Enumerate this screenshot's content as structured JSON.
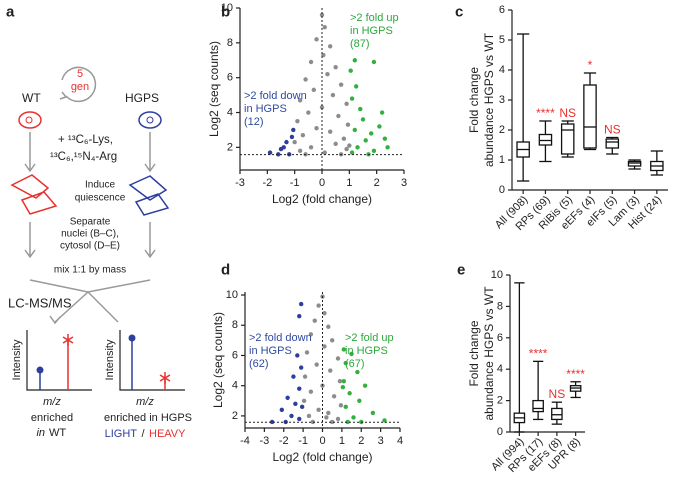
{
  "panel_labels": [
    "a",
    "b",
    "c",
    "d",
    "e"
  ],
  "diagram": {
    "wt": "WT",
    "hgps": "HGPS",
    "generations": [
      "5",
      "gen"
    ],
    "label_lys": "+ ¹³C₆-Lys,",
    "label_arg": "¹³C₆,¹⁵N₄-Arg",
    "quiescence": [
      "Induce",
      "quiescence"
    ],
    "separate": [
      "Separate",
      "nuclei (B–C),",
      "cytosol (D–E)"
    ],
    "mix": "mix 1:1 by mass",
    "lcms": "LC-MS/MS",
    "spectra": [
      {
        "ylabel": "Intensity",
        "xlabel": "m/z",
        "caption": [
          "enriched",
          "in",
          "WT"
        ]
      },
      {
        "ylabel": "Intensity",
        "xlabel": "m/z",
        "caption": [
          "enriched in HGPS"
        ],
        "light": "LIGHT",
        "slash": "/",
        "heavy": "HEAVY"
      }
    ]
  },
  "chart_data": [
    {
      "type": "scatter",
      "xlabel": "Log2 (fold change)",
      "ylabel": [
        "Log2 (seq counts)"
      ],
      "xlim": [
        -3,
        3
      ],
      "xticks": [
        -3,
        -2,
        -1,
        0,
        1,
        2,
        3
      ],
      "ylim": [
        0.7,
        10
      ],
      "yticks": [
        2,
        4,
        6,
        8,
        10
      ],
      "reference_lines": {
        "x": 0,
        "y": 1.58
      },
      "series": [
        {
          "color": "#8c8c8c",
          "x": [
            0,
            0.1,
            -0.2,
            0.3,
            0.05,
            -0.4,
            0.5,
            0.2,
            -0.6,
            0.7,
            -0.3,
            0.4,
            -0.8,
            0.9,
            0,
            -0.5,
            0.6,
            -0.9,
            0.95,
            -0.2,
            0.3,
            -0.7,
            0.8,
            -1.0,
            0.5,
            -0.4,
            0.9,
            -0.8,
            0.1,
            0.7,
            -0.6,
            1.0
          ],
          "values": [
            9.6,
            8.9,
            8.2,
            7.8,
            7.3,
            6.9,
            6.6,
            6.2,
            5.9,
            5.6,
            5.3,
            5.0,
            4.7,
            4.5,
            4.3,
            4.0,
            3.8,
            3.5,
            3.3,
            3.1,
            2.9,
            2.7,
            2.5,
            2.3,
            2.2,
            2.0,
            1.9,
            1.8,
            1.7,
            1.6,
            1.6,
            2.1
          ]
        },
        {
          "color": "#2e3e9e",
          "x": [
            -1.9,
            -1.5,
            -1.3,
            -1.1,
            -1.2,
            -1.6,
            -1.05,
            -1.4
          ],
          "values": [
            1.7,
            1.9,
            2.3,
            2.6,
            1.6,
            1.6,
            3.0,
            2.0
          ]
        },
        {
          "color": "#33b03f",
          "x": [
            1.1,
            1.3,
            1.6,
            1.2,
            2.1,
            1.5,
            1.9,
            2.4,
            1.4,
            1.8,
            1.1,
            2.3,
            1.25,
            1.7,
            2.2,
            1.05,
            1.2,
            1.9
          ],
          "values": [
            1.7,
            2.0,
            2.4,
            3.0,
            3.2,
            3.6,
            1.8,
            2.0,
            4.2,
            2.8,
            4.8,
            2.5,
            5.5,
            1.6,
            4.0,
            6.4,
            7.0,
            6.9
          ]
        }
      ],
      "annotations": [
        {
          "lines": [
            ">2 fold down",
            "in HGPS",
            "(12)"
          ],
          "color": "#2e4aa0"
        },
        {
          "lines": [
            ">2 fold up",
            "in HGPS",
            "(87)"
          ],
          "color": "#2ca83c"
        }
      ]
    },
    {
      "type": "box",
      "ylabel": [
        "Fold change",
        "abundance HGPS vs WT"
      ],
      "ylim": [
        0,
        6
      ],
      "yticks": [
        0,
        1,
        2,
        3,
        4,
        5,
        6
      ],
      "categories": [
        "All (908)",
        "RPs (69)",
        "RiBis (5)",
        "eEFs (4)",
        "eIFs (5)",
        "Lam (3)",
        "Hist (24)"
      ],
      "boxes": [
        {
          "min": 0.3,
          "q1": 1.1,
          "median": 1.35,
          "q3": 1.6,
          "max": 5.2
        },
        {
          "min": 0.95,
          "q1": 1.5,
          "median": 1.65,
          "q3": 1.85,
          "max": 2.3
        },
        {
          "min": 1.1,
          "q1": 1.2,
          "median": 2.0,
          "q3": 2.2,
          "max": 2.3
        },
        {
          "min": 1.35,
          "q1": 1.4,
          "median": 2.1,
          "q3": 3.5,
          "max": 3.9
        },
        {
          "min": 1.2,
          "q1": 1.4,
          "median": 1.6,
          "q3": 1.7,
          "max": 1.75
        },
        {
          "min": 0.7,
          "q1": 0.8,
          "median": 0.9,
          "q3": 0.95,
          "max": 1.0
        },
        {
          "min": 0.5,
          "q1": 0.65,
          "median": 0.8,
          "q3": 0.95,
          "max": 1.3
        }
      ],
      "annotations": [
        null,
        "****",
        "NS",
        "*",
        "NS",
        null,
        null
      ],
      "annotation_color": "#e8312f"
    },
    {
      "type": "scatter",
      "xlabel": "Log2 (fold change)",
      "ylabel": [
        "Log2 (seq counts)"
      ],
      "xlim": [
        -4,
        4
      ],
      "xticks": [
        -4,
        -3,
        -2,
        -1,
        0,
        1,
        2,
        3,
        4
      ],
      "ylim": [
        1.2,
        10.2
      ],
      "yticks": [
        2,
        4,
        6,
        8,
        10
      ],
      "reference_lines": {
        "x": 0,
        "y": 1.58
      },
      "series": [
        {
          "color": "#8c8c8c",
          "x": [
            0,
            -0.2,
            0.1,
            -0.4,
            0.3,
            -0.6,
            0.5,
            0.1,
            -0.8,
            0.8,
            -0.3,
            0.4,
            -0.9,
            0.9,
            0,
            -0.6,
            0.6,
            -0.95,
            0.95,
            -0.2,
            0.3,
            -0.7,
            0.8,
            -0.5,
            0.5,
            0.2
          ],
          "values": [
            9.9,
            9.3,
            8.8,
            8.3,
            7.9,
            7.4,
            7.0,
            6.6,
            6.2,
            5.8,
            5.4,
            5.0,
            4.6,
            4.3,
            4.0,
            3.6,
            3.3,
            3.0,
            2.7,
            2.4,
            2.2,
            2.0,
            1.8,
            1.6,
            1.6,
            1.9
          ]
        },
        {
          "color": "#2e3e9e",
          "x": [
            -1.1,
            -1.2,
            -1.3,
            -1.1,
            -1.5,
            -1.2,
            -1.8,
            -1.4,
            -2.1,
            -1.6,
            -2.6,
            -1.9,
            -1.2,
            -1.05
          ],
          "values": [
            9.4,
            8.6,
            6.0,
            5.2,
            4.6,
            3.8,
            3.2,
            2.8,
            2.4,
            2.0,
            1.6,
            1.6,
            1.8,
            2.6
          ]
        },
        {
          "color": "#33b03f",
          "x": [
            1.1,
            1.5,
            1.2,
            1.8,
            1.1,
            2.2,
            1.4,
            1.9,
            1.2,
            2.6,
            1.6,
            3.2,
            1.3,
            2.0,
            1.05
          ],
          "values": [
            6.4,
            6.1,
            5.5,
            4.9,
            4.3,
            4.0,
            3.5,
            3.0,
            2.6,
            2.2,
            1.9,
            1.7,
            1.6,
            1.6,
            3.9
          ]
        }
      ],
      "annotations": [
        {
          "lines": [
            ">2 fold down",
            "in HGPS",
            "(62)"
          ],
          "color": "#2e4aa0"
        },
        {
          "lines": [
            ">2 fold up",
            "in HGPS",
            "(67)"
          ],
          "color": "#2ca83c"
        }
      ]
    },
    {
      "type": "box",
      "ylabel": [
        "Fold change",
        "abundance HGPS vs WT"
      ],
      "ylim": [
        0,
        10
      ],
      "yticks": [
        0,
        2,
        4,
        6,
        8,
        10
      ],
      "categories": [
        "All (994)",
        "RPs (17)",
        "eEFs (8)",
        "UPR (8)"
      ],
      "boxes": [
        {
          "min": 0,
          "q1": 0.6,
          "median": 0.9,
          "q3": 1.2,
          "max": 9.5
        },
        {
          "min": 0.8,
          "q1": 1.3,
          "median": 1.5,
          "q3": 2.0,
          "max": 4.5
        },
        {
          "min": 0.5,
          "q1": 0.8,
          "median": 1.1,
          "q3": 1.5,
          "max": 1.9
        },
        {
          "min": 2.2,
          "q1": 2.6,
          "median": 2.8,
          "q3": 2.95,
          "max": 3.2
        }
      ],
      "annotations": [
        null,
        "****",
        "NS",
        "****"
      ],
      "annotation_color": "#e8312f"
    }
  ]
}
